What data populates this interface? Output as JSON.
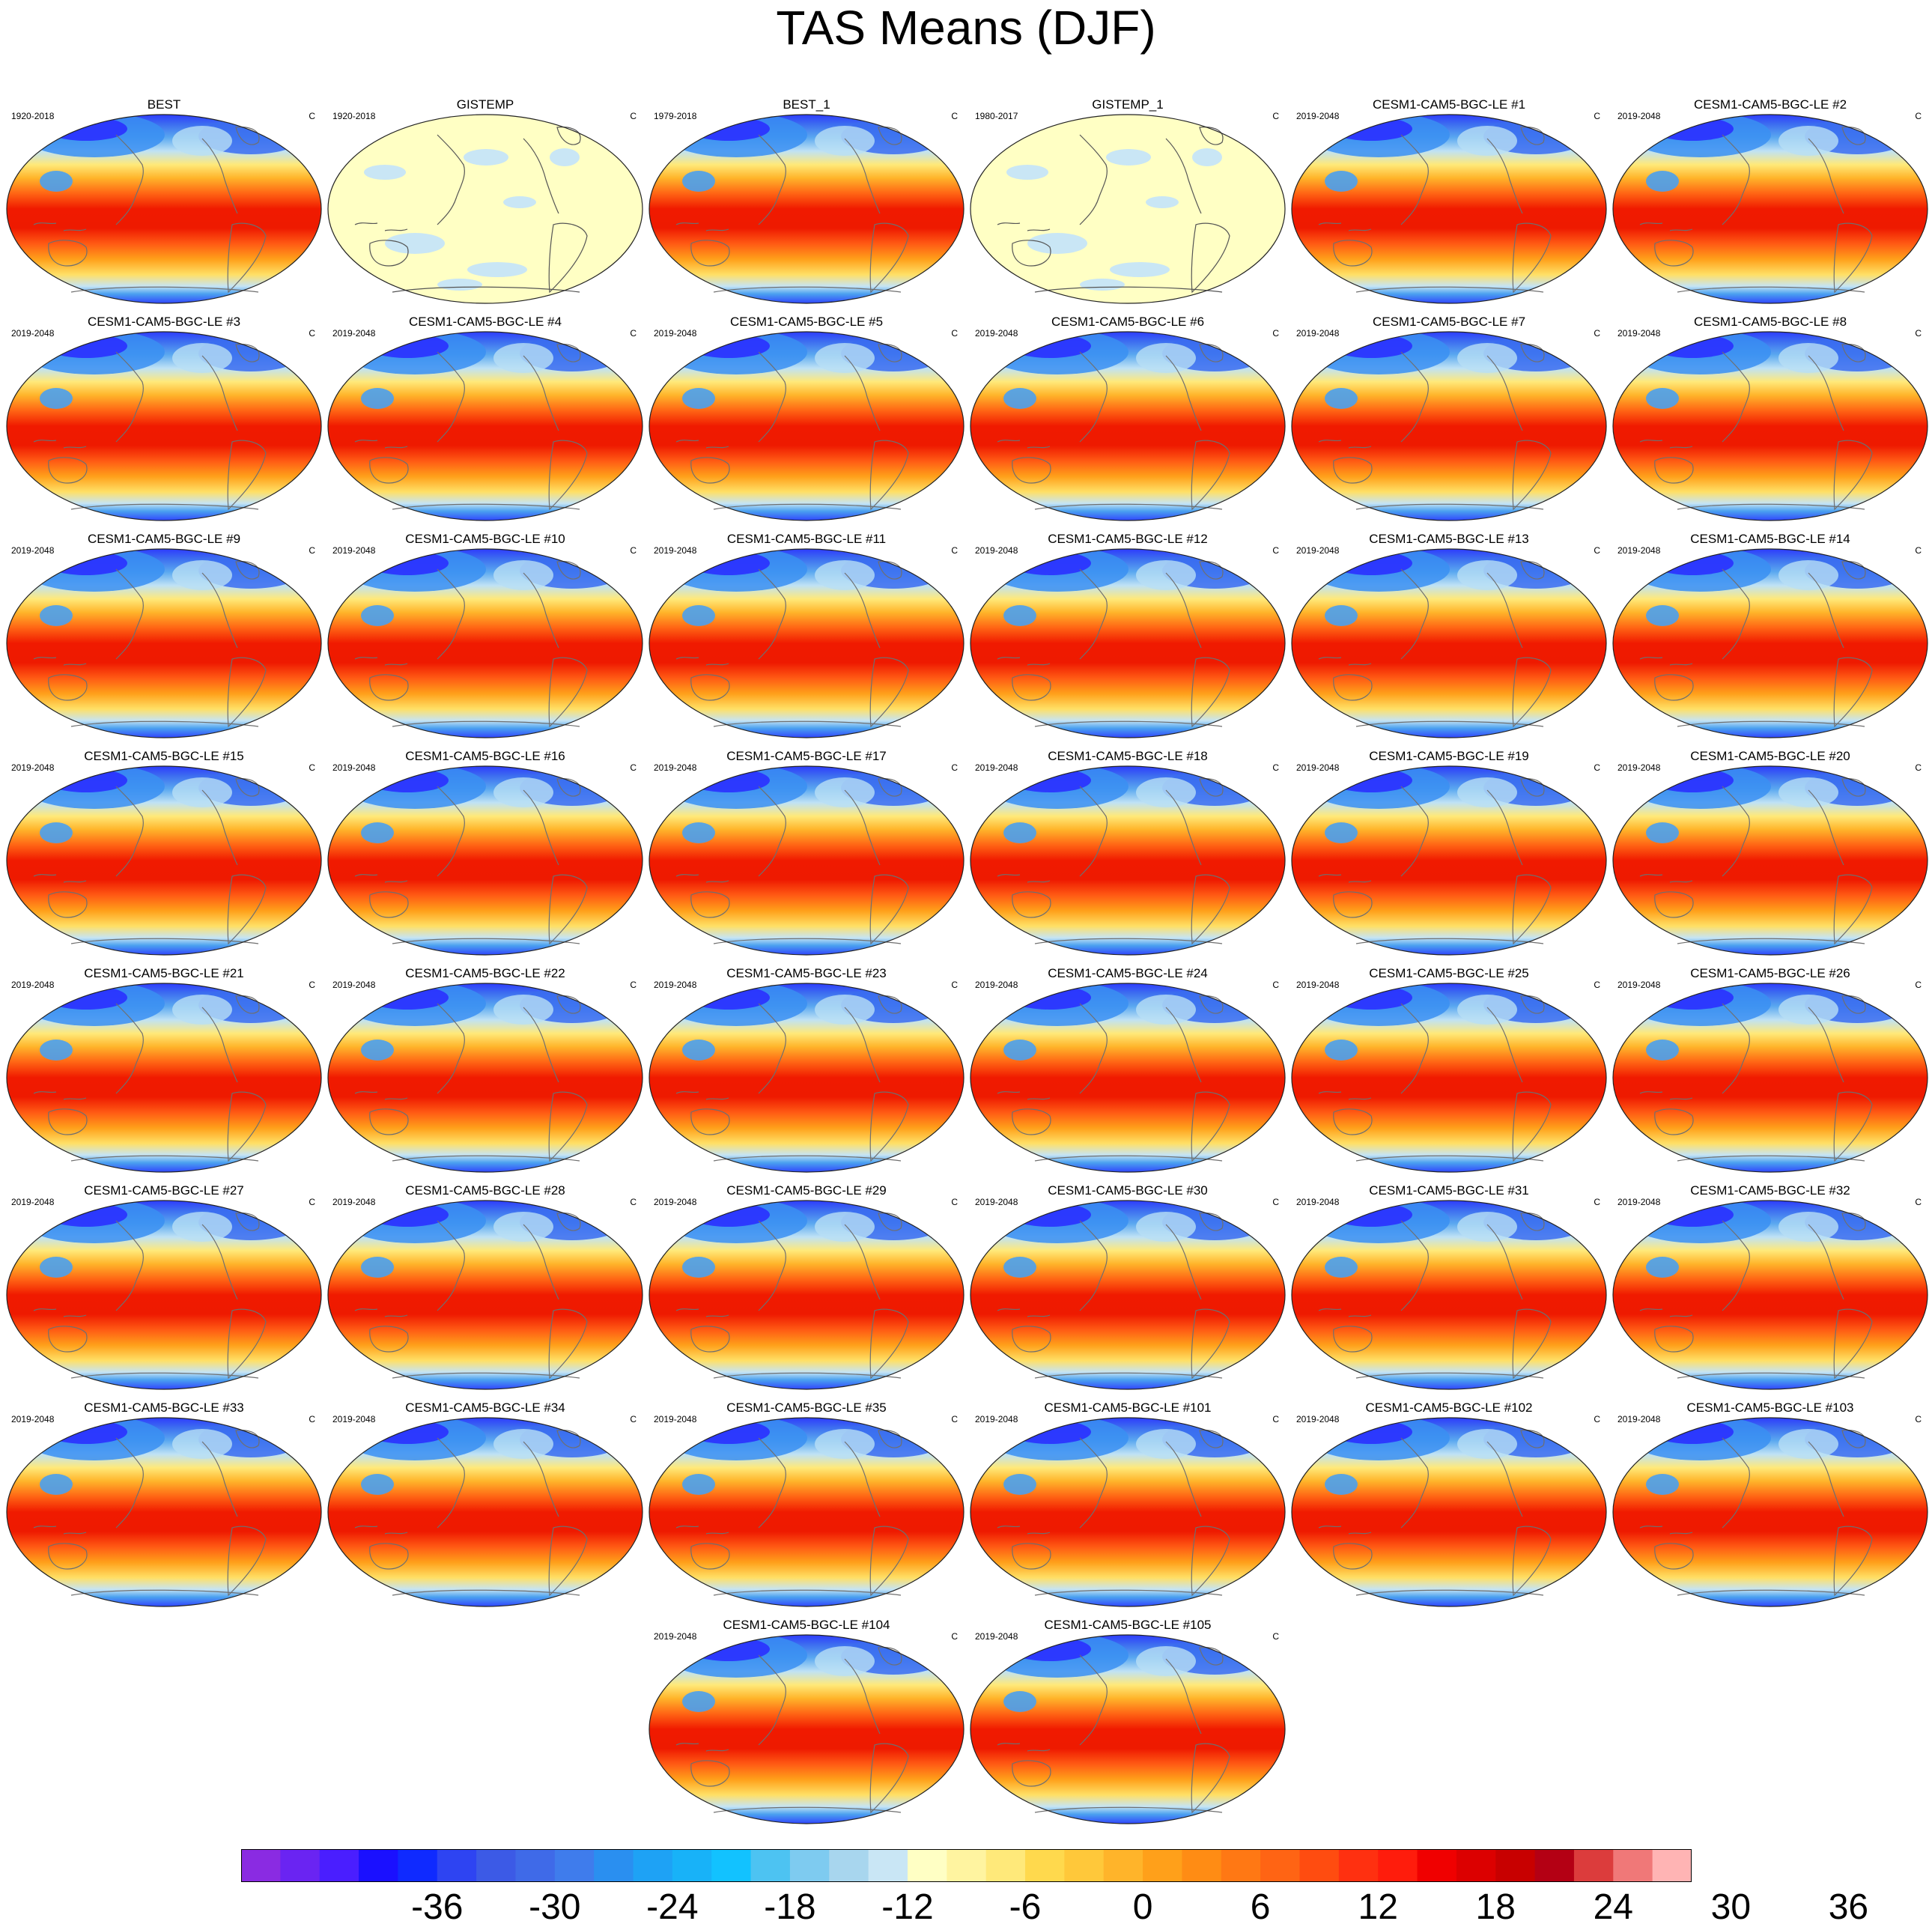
{
  "title": "TAS Means (DJF)",
  "units": "C",
  "legend_ticks": [
    "-36",
    "-30",
    "-24",
    "-18",
    "-12",
    "-6",
    "0",
    "6",
    "12",
    "18",
    "24",
    "30",
    "36"
  ],
  "colorbar_colors": [
    "#8a2be2",
    "#6a24f2",
    "#4a1eff",
    "#1a10ff",
    "#0f2aff",
    "#2e44f2",
    "#3c5ae6",
    "#3f6ae8",
    "#3f7cec",
    "#2a8ff0",
    "#1ea2f5",
    "#18b2f8",
    "#12c2ff",
    "#4dc3f2",
    "#7ecbf0",
    "#a8d6ee",
    "#c9e6f5",
    "#ffffc4",
    "#fff4a0",
    "#ffe97a",
    "#ffd94d",
    "#ffc83a",
    "#ffb42a",
    "#ffa01a",
    "#ff8c14",
    "#ff7814",
    "#ff6414",
    "#ff4c10",
    "#ff3010",
    "#ff1c0c",
    "#f00000",
    "#dc0000",
    "#c80000",
    "#b40014",
    "#dc3c3c",
    "#f07878",
    "#ffb4b4"
  ],
  "panels": [
    {
      "name": "BEST",
      "years": "1920-2018",
      "kind": "model"
    },
    {
      "name": "GISTEMP",
      "years": "1920-2018",
      "kind": "anomaly"
    },
    {
      "name": "BEST_1",
      "years": "1979-2018",
      "kind": "model"
    },
    {
      "name": "GISTEMP_1",
      "years": "1980-2017",
      "kind": "anomaly"
    },
    {
      "name": "CESM1-CAM5-BGC-LE #1",
      "years": "2019-2048",
      "kind": "model"
    },
    {
      "name": "CESM1-CAM5-BGC-LE #2",
      "years": "2019-2048",
      "kind": "model"
    },
    {
      "name": "CESM1-CAM5-BGC-LE #3",
      "years": "2019-2048",
      "kind": "model"
    },
    {
      "name": "CESM1-CAM5-BGC-LE #4",
      "years": "2019-2048",
      "kind": "model"
    },
    {
      "name": "CESM1-CAM5-BGC-LE #5",
      "years": "2019-2048",
      "kind": "model"
    },
    {
      "name": "CESM1-CAM5-BGC-LE #6",
      "years": "2019-2048",
      "kind": "model"
    },
    {
      "name": "CESM1-CAM5-BGC-LE #7",
      "years": "2019-2048",
      "kind": "model"
    },
    {
      "name": "CESM1-CAM5-BGC-LE #8",
      "years": "2019-2048",
      "kind": "model"
    },
    {
      "name": "CESM1-CAM5-BGC-LE #9",
      "years": "2019-2048",
      "kind": "model"
    },
    {
      "name": "CESM1-CAM5-BGC-LE #10",
      "years": "2019-2048",
      "kind": "model"
    },
    {
      "name": "CESM1-CAM5-BGC-LE #11",
      "years": "2019-2048",
      "kind": "model"
    },
    {
      "name": "CESM1-CAM5-BGC-LE #12",
      "years": "2019-2048",
      "kind": "model"
    },
    {
      "name": "CESM1-CAM5-BGC-LE #13",
      "years": "2019-2048",
      "kind": "model"
    },
    {
      "name": "CESM1-CAM5-BGC-LE #14",
      "years": "2019-2048",
      "kind": "model"
    },
    {
      "name": "CESM1-CAM5-BGC-LE #15",
      "years": "2019-2048",
      "kind": "model"
    },
    {
      "name": "CESM1-CAM5-BGC-LE #16",
      "years": "2019-2048",
      "kind": "model"
    },
    {
      "name": "CESM1-CAM5-BGC-LE #17",
      "years": "2019-2048",
      "kind": "model"
    },
    {
      "name": "CESM1-CAM5-BGC-LE #18",
      "years": "2019-2048",
      "kind": "model"
    },
    {
      "name": "CESM1-CAM5-BGC-LE #19",
      "years": "2019-2048",
      "kind": "model"
    },
    {
      "name": "CESM1-CAM5-BGC-LE #20",
      "years": "2019-2048",
      "kind": "model"
    },
    {
      "name": "CESM1-CAM5-BGC-LE #21",
      "years": "2019-2048",
      "kind": "model"
    },
    {
      "name": "CESM1-CAM5-BGC-LE #22",
      "years": "2019-2048",
      "kind": "model"
    },
    {
      "name": "CESM1-CAM5-BGC-LE #23",
      "years": "2019-2048",
      "kind": "model"
    },
    {
      "name": "CESM1-CAM5-BGC-LE #24",
      "years": "2019-2048",
      "kind": "model"
    },
    {
      "name": "CESM1-CAM5-BGC-LE #25",
      "years": "2019-2048",
      "kind": "model"
    },
    {
      "name": "CESM1-CAM5-BGC-LE #26",
      "years": "2019-2048",
      "kind": "model"
    },
    {
      "name": "CESM1-CAM5-BGC-LE #27",
      "years": "2019-2048",
      "kind": "model"
    },
    {
      "name": "CESM1-CAM5-BGC-LE #28",
      "years": "2019-2048",
      "kind": "model"
    },
    {
      "name": "CESM1-CAM5-BGC-LE #29",
      "years": "2019-2048",
      "kind": "model"
    },
    {
      "name": "CESM1-CAM5-BGC-LE #30",
      "years": "2019-2048",
      "kind": "model"
    },
    {
      "name": "CESM1-CAM5-BGC-LE #31",
      "years": "2019-2048",
      "kind": "model"
    },
    {
      "name": "CESM1-CAM5-BGC-LE #32",
      "years": "2019-2048",
      "kind": "model"
    },
    {
      "name": "CESM1-CAM5-BGC-LE #33",
      "years": "2019-2048",
      "kind": "model"
    },
    {
      "name": "CESM1-CAM5-BGC-LE #34",
      "years": "2019-2048",
      "kind": "model"
    },
    {
      "name": "CESM1-CAM5-BGC-LE #35",
      "years": "2019-2048",
      "kind": "model"
    },
    {
      "name": "CESM1-CAM5-BGC-LE #101",
      "years": "2019-2048",
      "kind": "model"
    },
    {
      "name": "CESM1-CAM5-BGC-LE #102",
      "years": "2019-2048",
      "kind": "model"
    },
    {
      "name": "CESM1-CAM5-BGC-LE #103",
      "years": "2019-2048",
      "kind": "model"
    },
    {
      "name": "CESM1-CAM5-BGC-LE #104",
      "years": "2019-2048",
      "kind": "model"
    },
    {
      "name": "CESM1-CAM5-BGC-LE #105",
      "years": "2019-2048",
      "kind": "model"
    }
  ]
}
